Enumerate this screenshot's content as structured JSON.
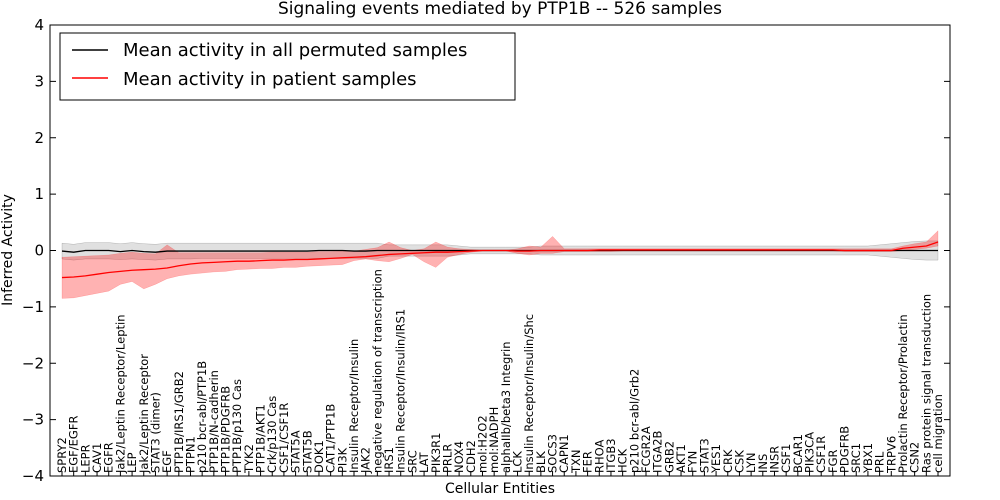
{
  "chart_data": {
    "type": "line",
    "title": "Signaling events mediated by PTP1B -- 526 samples",
    "xlabel": "Cellular Entities",
    "ylabel": "Inferred Activity",
    "ylim": [
      -4,
      4
    ],
    "yticks": [
      4,
      3,
      2,
      1,
      0,
      -1,
      -2,
      -3,
      -4
    ],
    "ytick_labels": [
      "4",
      "3",
      "2",
      "1",
      "0",
      "−1",
      "−2",
      "−3",
      "−4"
    ],
    "legend_position": "top-left",
    "categories": [
      "SPRY2",
      "EGF/EGFR",
      "LEPR",
      "CAV1",
      "EGFR",
      "Jak2/Leptin Receptor/Leptin",
      "LEP",
      "Jak2/Leptin Receptor",
      "STAT3 (dimer)",
      "EGF",
      "PTP1B/IRS1/GRB2",
      "PTPN1",
      "p210 bcr-abl/PTP1B",
      "PTP1B/N-cadherin",
      "PTP1B/PDGFRB",
      "PTP1B/p130 Cas",
      "TYK2",
      "PTP1B/AKT1",
      "Crk/p130 Cas",
      "CSF1/CSF1R",
      "STAT5A",
      "STAT5B",
      "DOK1",
      "CAT1/PTP1B",
      "PI3K",
      "Insulin Receptor/Insulin",
      "JAK2",
      "negative regulation of transcription",
      "IRS1",
      "Insulin Receptor/Insulin/IRS1",
      "SRC",
      "LAT",
      "PIK3R1",
      "PRLR",
      "NOX4",
      "CDH2",
      "mol:H2O2",
      "mol:NADPH",
      "alphaIIb/beta3 Integrin",
      "LCK",
      "Insulin Receptor/Insulin/Shc",
      "BLK",
      "SOCS3",
      "CAPN1",
      "TXN",
      "FER",
      "RHOA",
      "ITGB3",
      "HCK",
      "p210 bcr-abl/Grb2",
      "FCGR2A",
      "ITGA2B",
      "GRB2",
      "AKT1",
      "FYN",
      "STAT3",
      "YES1",
      "CRK",
      "CSK",
      "LYN",
      "INS",
      "INSR",
      "CSF1",
      "BCAR1",
      "PIK3CA",
      "CSF1R",
      "FGR",
      "PDGFRB",
      "SRC1",
      "YBX1",
      "PRL",
      "TRPV6",
      "Prolactin Receptor/Prolactin",
      "CSN2",
      "Ras protein signal transduction",
      "cell migration"
    ],
    "series": [
      {
        "name": "Mean activity in all permuted samples",
        "color": "#000000",
        "values": [
          -0.01,
          -0.03,
          0.0,
          0.0,
          0.0,
          -0.02,
          0.0,
          -0.02,
          -0.03,
          -0.01,
          -0.01,
          -0.01,
          -0.01,
          -0.01,
          -0.01,
          -0.01,
          -0.01,
          -0.01,
          -0.01,
          -0.01,
          -0.01,
          -0.01,
          0.0,
          0.0,
          0.0,
          -0.01,
          -0.01,
          0.0,
          0.0,
          0.0,
          0.0,
          0.0,
          0.0,
          0.0,
          0.0,
          0.0,
          0.0,
          0.0,
          0.0,
          0.0,
          0.0,
          0.0,
          0.0,
          0.0,
          0.0,
          0.0,
          0.0,
          0.0,
          0.0,
          0.0,
          0.0,
          0.0,
          0.0,
          0.0,
          0.0,
          0.0,
          0.0,
          0.0,
          0.0,
          0.0,
          0.0,
          0.0,
          0.0,
          0.0,
          0.0,
          0.0,
          0.0,
          0.0,
          0.0,
          0.0,
          0.0,
          0.0,
          0.0,
          0.0,
          0.0,
          0.0
        ],
        "lower": [
          -0.15,
          -0.17,
          -0.15,
          -0.15,
          -0.15,
          -0.16,
          -0.15,
          -0.16,
          -0.17,
          -0.15,
          -0.15,
          -0.15,
          -0.14,
          -0.14,
          -0.14,
          -0.14,
          -0.14,
          -0.14,
          -0.14,
          -0.14,
          -0.14,
          -0.14,
          -0.14,
          -0.14,
          -0.14,
          -0.14,
          -0.14,
          -0.14,
          -0.1,
          -0.1,
          -0.1,
          -0.1,
          -0.1,
          -0.1,
          -0.08,
          -0.06,
          -0.06,
          -0.06,
          -0.06,
          -0.06,
          -0.06,
          -0.08,
          -0.08,
          -0.08,
          -0.08,
          -0.08,
          -0.08,
          -0.08,
          -0.08,
          -0.08,
          -0.08,
          -0.08,
          -0.08,
          -0.08,
          -0.08,
          -0.08,
          -0.08,
          -0.08,
          -0.08,
          -0.08,
          -0.08,
          -0.08,
          -0.08,
          -0.08,
          -0.08,
          -0.08,
          -0.08,
          -0.08,
          -0.08,
          -0.08,
          -0.1,
          -0.12,
          -0.14,
          -0.16,
          -0.17,
          -0.17
        ],
        "upper": [
          0.13,
          0.11,
          0.14,
          0.14,
          0.14,
          0.12,
          0.14,
          0.12,
          0.11,
          0.13,
          0.13,
          0.13,
          0.13,
          0.13,
          0.13,
          0.13,
          0.13,
          0.13,
          0.13,
          0.13,
          0.13,
          0.13,
          0.13,
          0.13,
          0.13,
          0.13,
          0.13,
          0.13,
          0.1,
          0.1,
          0.1,
          0.1,
          0.1,
          0.1,
          0.08,
          0.06,
          0.06,
          0.06,
          0.06,
          0.06,
          0.06,
          0.08,
          0.08,
          0.08,
          0.08,
          0.08,
          0.08,
          0.08,
          0.08,
          0.08,
          0.08,
          0.08,
          0.08,
          0.08,
          0.08,
          0.08,
          0.08,
          0.08,
          0.08,
          0.08,
          0.08,
          0.08,
          0.08,
          0.08,
          0.08,
          0.08,
          0.08,
          0.08,
          0.08,
          0.08,
          0.1,
          0.12,
          0.14,
          0.16,
          0.17,
          0.17
        ]
      },
      {
        "name": "Mean activity in patient samples",
        "color": "#ff0000",
        "values": [
          -0.48,
          -0.47,
          -0.45,
          -0.42,
          -0.39,
          -0.37,
          -0.35,
          -0.34,
          -0.33,
          -0.31,
          -0.27,
          -0.24,
          -0.22,
          -0.21,
          -0.2,
          -0.19,
          -0.19,
          -0.18,
          -0.17,
          -0.17,
          -0.16,
          -0.16,
          -0.15,
          -0.14,
          -0.13,
          -0.12,
          -0.11,
          -0.09,
          -0.07,
          -0.06,
          -0.05,
          -0.04,
          -0.03,
          -0.03,
          -0.02,
          -0.01,
          0.0,
          0.0,
          0.0,
          -0.01,
          -0.01,
          0.0,
          0.0,
          0.0,
          0.0,
          0.0,
          0.01,
          0.01,
          0.01,
          0.01,
          0.01,
          0.01,
          0.01,
          0.01,
          0.01,
          0.01,
          0.01,
          0.01,
          0.01,
          0.01,
          0.01,
          0.01,
          0.01,
          0.01,
          0.01,
          0.01,
          0.01,
          0.0,
          0.0,
          0.0,
          0.0,
          0.0,
          0.04,
          0.06,
          0.08,
          0.15
        ],
        "lower": [
          -0.85,
          -0.84,
          -0.8,
          -0.76,
          -0.72,
          -0.6,
          -0.55,
          -0.68,
          -0.6,
          -0.5,
          -0.45,
          -0.42,
          -0.4,
          -0.38,
          -0.37,
          -0.34,
          -0.33,
          -0.32,
          -0.32,
          -0.3,
          -0.3,
          -0.28,
          -0.27,
          -0.26,
          -0.25,
          -0.18,
          -0.15,
          -0.18,
          -0.2,
          -0.14,
          -0.07,
          -0.2,
          -0.3,
          -0.12,
          -0.07,
          -0.03,
          -0.01,
          -0.01,
          -0.01,
          -0.05,
          -0.08,
          -0.05,
          -0.05,
          -0.02,
          -0.02,
          -0.02,
          -0.02,
          -0.02,
          -0.01,
          -0.01,
          -0.01,
          -0.01,
          -0.01,
          -0.01,
          -0.01,
          -0.01,
          -0.01,
          -0.01,
          -0.01,
          -0.01,
          -0.01,
          -0.01,
          -0.01,
          -0.01,
          -0.01,
          -0.01,
          -0.01,
          -0.02,
          -0.02,
          -0.02,
          -0.02,
          -0.02,
          0.0,
          0.02,
          0.04,
          0.08
        ],
        "upper": [
          -0.12,
          -0.11,
          -0.1,
          -0.09,
          -0.08,
          -0.05,
          -0.03,
          -0.05,
          -0.06,
          0.1,
          -0.04,
          -0.04,
          -0.04,
          -0.04,
          -0.04,
          -0.04,
          -0.04,
          -0.04,
          -0.03,
          -0.03,
          -0.03,
          -0.03,
          -0.02,
          -0.02,
          -0.01,
          -0.01,
          0.02,
          0.05,
          0.15,
          0.05,
          0.0,
          0.03,
          0.15,
          0.06,
          0.03,
          0.02,
          0.01,
          0.01,
          0.01,
          0.03,
          0.08,
          0.06,
          0.25,
          0.03,
          0.03,
          0.03,
          0.03,
          0.03,
          0.03,
          0.03,
          0.03,
          0.03,
          0.03,
          0.03,
          0.03,
          0.03,
          0.03,
          0.03,
          0.03,
          0.03,
          0.03,
          0.03,
          0.03,
          0.03,
          0.03,
          0.03,
          0.03,
          0.03,
          0.03,
          0.03,
          0.03,
          0.03,
          0.08,
          0.12,
          0.15,
          0.35
        ]
      }
    ]
  }
}
